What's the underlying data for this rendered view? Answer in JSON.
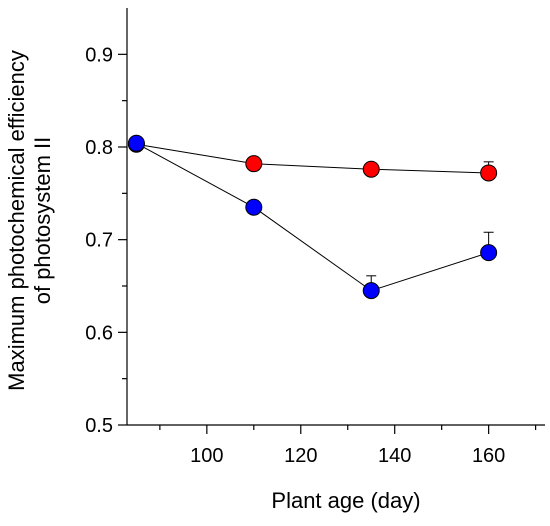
{
  "chart_data": {
    "type": "scatter",
    "title": "",
    "xlabel": "Plant age (day)",
    "ylabel": [
      "Maximum photochemical efficiency",
      "of photosystem II"
    ],
    "xlim": [
      83,
      172
    ],
    "ylim": [
      0.5,
      0.95
    ],
    "x_ticks": [
      100,
      120,
      140,
      160
    ],
    "x_tick_labels": [
      "100",
      "120",
      "140",
      "160"
    ],
    "x_minor_ticks": [
      90,
      110,
      130,
      150,
      170
    ],
    "y_ticks": [
      0.5,
      0.6,
      0.7,
      0.8,
      0.9
    ],
    "y_tick_labels": [
      "0.5",
      "0.6",
      "0.7",
      "0.8",
      "0.9"
    ],
    "y_minor_ticks": [
      0.55,
      0.65,
      0.75,
      0.85
    ],
    "grid": false,
    "legend": null,
    "series": [
      {
        "color": "#ff0000",
        "marker": "circle",
        "line": true,
        "points": [
          {
            "x": 85,
            "y": 0.803,
            "err": 0
          },
          {
            "x": 110,
            "y": 0.782,
            "err": 0
          },
          {
            "x": 135,
            "y": 0.776,
            "err": 0
          },
          {
            "x": 160,
            "y": 0.772,
            "err": 0.012
          }
        ]
      },
      {
        "color": "#0000ff",
        "marker": "circle",
        "line": true,
        "points": [
          {
            "x": 85,
            "y": 0.804,
            "err": 0
          },
          {
            "x": 110,
            "y": 0.735,
            "err": 0
          },
          {
            "x": 135,
            "y": 0.645,
            "err": 0.016
          },
          {
            "x": 160,
            "y": 0.686,
            "err": 0.022
          }
        ]
      }
    ]
  }
}
